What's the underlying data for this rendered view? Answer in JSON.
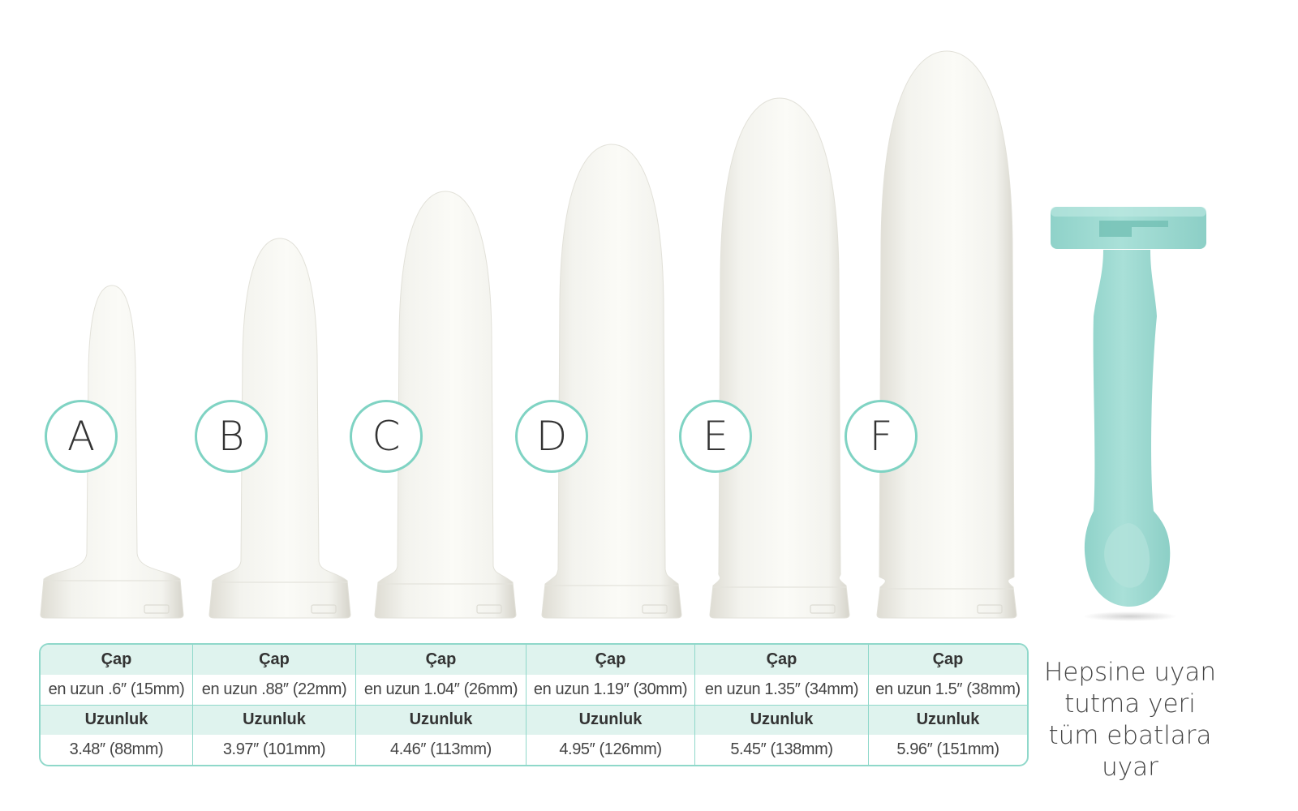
{
  "dilators": [
    {
      "letter": "A",
      "diameter_label": "Çap",
      "diameter": "en uzun .6″ (15mm)",
      "length_label": "Uzunluk",
      "length": "3.48″ (88mm)"
    },
    {
      "letter": "B",
      "diameter_label": "Çap",
      "diameter": "en uzun .88″ (22mm)",
      "length_label": "Uzunluk",
      "length": "3.97″ (101mm)"
    },
    {
      "letter": "C",
      "diameter_label": "Çap",
      "diameter": "en uzun 1.04″ (26mm)",
      "length_label": "Uzunluk",
      "length": "4.46″ (113mm)"
    },
    {
      "letter": "D",
      "diameter_label": "Çap",
      "diameter": "en uzun 1.19″ (30mm)",
      "length_label": "Uzunluk",
      "length": "4.95″ (126mm)"
    },
    {
      "letter": "E",
      "diameter_label": "Çap",
      "diameter": "en uzun 1.35″ (34mm)",
      "length_label": "Uzunluk",
      "length": "5.45″ (138mm)"
    },
    {
      "letter": "F",
      "diameter_label": "Çap",
      "diameter": "en uzun 1.5″ (38mm)",
      "length_label": "Uzunluk",
      "length": "5.96″ (151mm)"
    }
  ],
  "handle": {
    "caption": "Hepsine uyan tutma yeri tüm ebatlara uyar",
    "color": "#a3dcd5"
  },
  "colors": {
    "accent": "#7fd3c3",
    "table_header_bg": "#dff3ee",
    "dilator_body": "#f3f3ee"
  }
}
